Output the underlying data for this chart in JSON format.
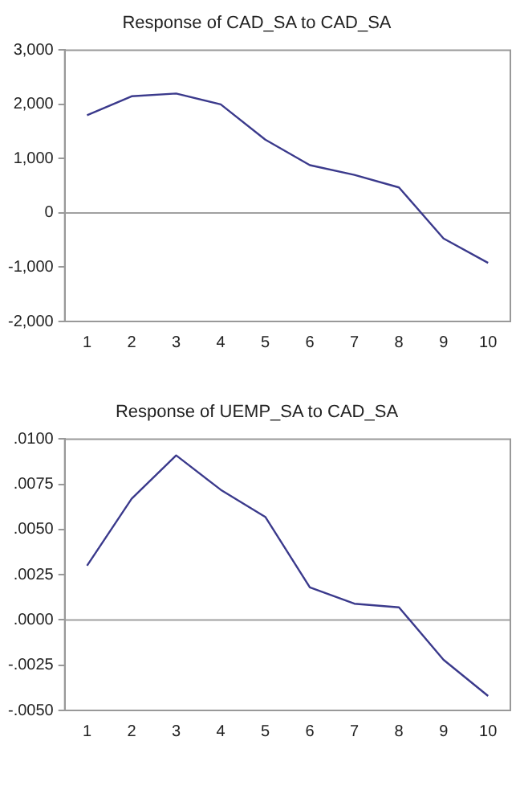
{
  "chart_data": [
    {
      "type": "line",
      "title": "Response of CAD_SA to CAD_SA",
      "categories": [
        "1",
        "2",
        "3",
        "4",
        "5",
        "6",
        "7",
        "8",
        "9",
        "10"
      ],
      "series": [
        {
          "color": "#3b3a8c",
          "values": [
            1800,
            2150,
            2200,
            2000,
            1350,
            880,
            700,
            470,
            -470,
            -920
          ]
        }
      ],
      "ylim": [
        -2000,
        3000
      ],
      "yticks": [
        {
          "value": -2000,
          "label": "-2,000"
        },
        {
          "value": -1000,
          "label": "-1,000"
        },
        0,
        {
          "value": 1000,
          "label": "1,000"
        },
        {
          "value": 2000,
          "label": "2,000"
        },
        {
          "value": 3000,
          "label": "3,000"
        }
      ],
      "ref_lines": [
        {
          "axis": "y",
          "value": 0,
          "color": "#a0a0a0"
        }
      ],
      "grid": false,
      "legend": false,
      "marker": "none",
      "line_style": "solid"
    },
    {
      "type": "line",
      "title": "Response of UEMP_SA to CAD_SA",
      "categories": [
        "1",
        "2",
        "3",
        "4",
        "5",
        "6",
        "7",
        "8",
        "9",
        "10"
      ],
      "series": [
        {
          "color": "#3b3a8c",
          "values": [
            0.003,
            0.0067,
            0.0091,
            0.0072,
            0.0057,
            0.0018,
            0.0009,
            0.0007,
            -0.0022,
            -0.0042
          ]
        }
      ],
      "ylim": [
        -0.005,
        0.01
      ],
      "yticks": [
        {
          "value": -0.005,
          "label": "-.0050"
        },
        {
          "value": -0.0025,
          "label": "-.0025"
        },
        {
          "value": 0,
          "label": ".0000"
        },
        {
          "value": 0.0025,
          "label": ".0025"
        },
        {
          "value": 0.005,
          "label": ".0050"
        },
        {
          "value": 0.0075,
          "label": ".0075"
        },
        {
          "value": 0.01,
          "label": ".0100"
        }
      ],
      "ref_lines": [
        {
          "axis": "y",
          "value": 0,
          "color": "#a0a0a0"
        }
      ],
      "grid": false,
      "legend": false,
      "marker": "none",
      "line_style": "solid"
    }
  ]
}
